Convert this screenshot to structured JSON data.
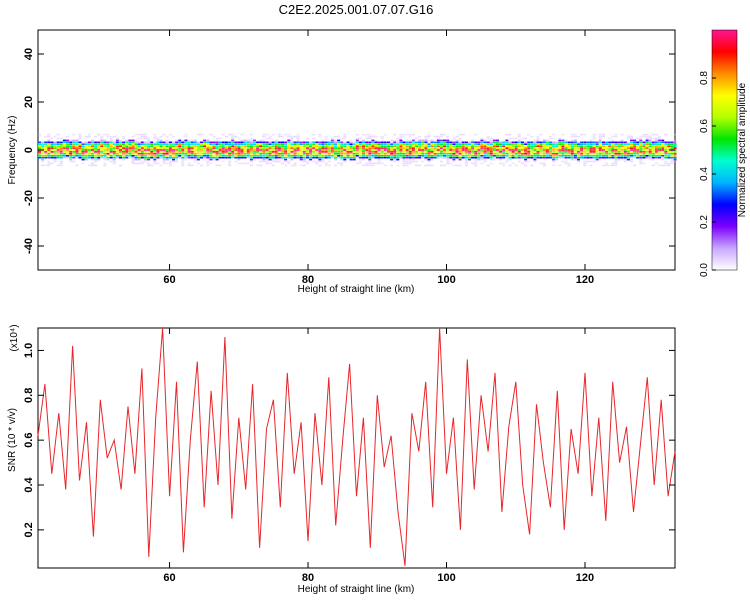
{
  "figure": {
    "title": "C2E2.2025.001.07.07.G16"
  },
  "chart_data": [
    {
      "type": "heatmap",
      "xlabel": "Height of straight line (km)",
      "ylabel": "Frequency (Hz)",
      "xlim": [
        41,
        133
      ],
      "ylim": [
        -50,
        50
      ],
      "xticks": [
        60,
        80,
        100,
        120
      ],
      "yticks": [
        -40,
        -20,
        0,
        20,
        40
      ],
      "colorbar": {
        "label": "Normalized spectral amplitude",
        "range": [
          0,
          1
        ],
        "ticks": [
          0.0,
          0.2,
          0.4,
          0.6,
          0.8
        ],
        "colors": [
          "#ffffff",
          "#c9a6ff",
          "#7b00ff",
          "#0000ff",
          "#00b4ff",
          "#00ffd0",
          "#00e600",
          "#b4ff00",
          "#ffff00",
          "#ff8c00",
          "#ff0000",
          "#ff1493"
        ]
      },
      "band": {
        "center_hz": 0,
        "halfwidth_hz": 4,
        "description_values": "energy concentrated in a narrow band around 0 Hz across all heights"
      },
      "grid": false
    },
    {
      "type": "line",
      "xlabel": "Height of straight line (km)",
      "ylabel": "SNR (10 * v/v)",
      "yscale_note": "(x10⁴)",
      "xlim": [
        41,
        133
      ],
      "ylim": [
        0.03,
        1.1
      ],
      "xticks": [
        60,
        80,
        100,
        120
      ],
      "yticks": [
        0.2,
        0.4,
        0.6,
        0.8,
        1.0
      ],
      "series": [
        {
          "color": "#e8262a",
          "x": [
            41,
            42,
            43,
            44,
            45,
            46,
            47,
            48,
            49,
            50,
            51,
            52,
            53,
            54,
            55,
            56,
            57,
            58,
            59,
            60,
            61,
            62,
            63,
            64,
            65,
            66,
            67,
            68,
            69,
            70,
            71,
            72,
            73,
            74,
            75,
            76,
            77,
            78,
            79,
            80,
            81,
            82,
            83,
            84,
            85,
            86,
            87,
            88,
            89,
            90,
            91,
            92,
            93,
            94,
            95,
            96,
            97,
            98,
            99,
            100,
            101,
            102,
            103,
            104,
            105,
            106,
            107,
            108,
            109,
            110,
            111,
            112,
            113,
            114,
            115,
            116,
            117,
            118,
            119,
            120,
            121,
            122,
            123,
            124,
            125,
            126,
            127,
            128,
            129,
            130,
            131,
            132,
            133
          ],
          "y": [
            0.62,
            0.85,
            0.45,
            0.72,
            0.38,
            1.02,
            0.42,
            0.68,
            0.17,
            0.78,
            0.52,
            0.6,
            0.38,
            0.75,
            0.45,
            0.92,
            0.08,
            0.7,
            1.1,
            0.35,
            0.86,
            0.1,
            0.6,
            0.95,
            0.3,
            0.82,
            0.4,
            1.06,
            0.25,
            0.7,
            0.38,
            0.85,
            0.12,
            0.65,
            0.78,
            0.3,
            0.9,
            0.45,
            0.68,
            0.15,
            0.72,
            0.4,
            0.88,
            0.22,
            0.6,
            0.94,
            0.35,
            0.7,
            0.12,
            0.8,
            0.48,
            0.62,
            0.28,
            0.04,
            0.72,
            0.55,
            0.86,
            0.3,
            1.1,
            0.45,
            0.7,
            0.2,
            0.96,
            0.38,
            0.8,
            0.55,
            0.9,
            0.28,
            0.66,
            0.86,
            0.4,
            0.18,
            0.76,
            0.5,
            0.3,
            0.82,
            0.2,
            0.65,
            0.45,
            0.9,
            0.35,
            0.7,
            0.24,
            0.86,
            0.5,
            0.66,
            0.28,
            0.58,
            0.88,
            0.4,
            0.78,
            0.35,
            0.55
          ]
        }
      ],
      "grid": false
    }
  ]
}
